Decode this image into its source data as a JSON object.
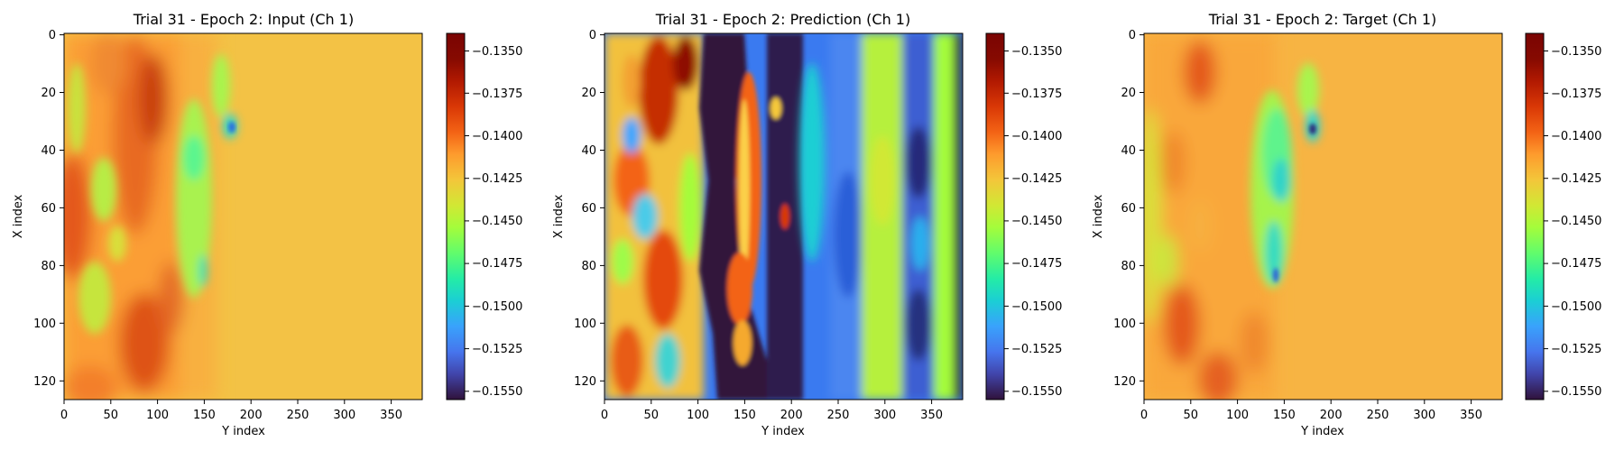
{
  "chart_data": [
    {
      "type": "heatmap",
      "title": "Trial 31 - Epoch 2: Input (Ch 1)",
      "xlabel": "Y index",
      "ylabel": "X index",
      "x_range": [
        0,
        383
      ],
      "y_range": [
        0,
        127
      ],
      "x_ticks": [
        0,
        50,
        100,
        150,
        200,
        250,
        300,
        350
      ],
      "y_ticks": [
        0,
        20,
        40,
        60,
        80,
        100,
        120
      ],
      "colorbar": {
        "colormap": "turbo",
        "range": [
          -0.1555,
          -0.134
        ],
        "ticks": [
          -0.135,
          -0.1375,
          -0.14,
          -0.1425,
          -0.145,
          -0.1475,
          -0.15,
          -0.1525,
          -0.155
        ],
        "tick_labels": [
          "−0.1350",
          "−0.1375",
          "−0.1400",
          "−0.1425",
          "−0.1450",
          "−0.1475",
          "−0.1500",
          "−0.1525",
          "−0.1550"
        ]
      }
    },
    {
      "type": "heatmap",
      "title": "Trial 31 - Epoch 2: Prediction (Ch 1)",
      "xlabel": "Y index",
      "ylabel": "X index",
      "x_range": [
        0,
        383
      ],
      "y_range": [
        0,
        127
      ],
      "x_ticks": [
        0,
        50,
        100,
        150,
        200,
        250,
        300,
        350
      ],
      "y_ticks": [
        0,
        20,
        40,
        60,
        80,
        100,
        120
      ],
      "colorbar": {
        "colormap": "turbo",
        "range": [
          -0.1555,
          -0.134
        ],
        "ticks": [
          -0.135,
          -0.1375,
          -0.14,
          -0.1425,
          -0.145,
          -0.1475,
          -0.15,
          -0.1525,
          -0.155
        ],
        "tick_labels": [
          "−0.1350",
          "−0.1375",
          "−0.1400",
          "−0.1425",
          "−0.1450",
          "−0.1475",
          "−0.1500",
          "−0.1525",
          "−0.1550"
        ]
      }
    },
    {
      "type": "heatmap",
      "title": "Trial 31 - Epoch 2: Target (Ch 1)",
      "xlabel": "Y index",
      "ylabel": "X index",
      "x_range": [
        0,
        383
      ],
      "y_range": [
        0,
        127
      ],
      "x_ticks": [
        0,
        50,
        100,
        150,
        200,
        250,
        300,
        350
      ],
      "y_ticks": [
        0,
        20,
        40,
        60,
        80,
        100,
        120
      ],
      "colorbar": {
        "colormap": "turbo",
        "range": [
          -0.1555,
          -0.134
        ],
        "ticks": [
          -0.135,
          -0.1375,
          -0.14,
          -0.1425,
          -0.145,
          -0.1475,
          -0.15,
          -0.1525,
          -0.155
        ],
        "tick_labels": [
          "−0.1350",
          "−0.1375",
          "−0.1400",
          "−0.1425",
          "−0.1450",
          "−0.1475",
          "−0.1500",
          "−0.1525",
          "−0.1550"
        ]
      }
    }
  ]
}
